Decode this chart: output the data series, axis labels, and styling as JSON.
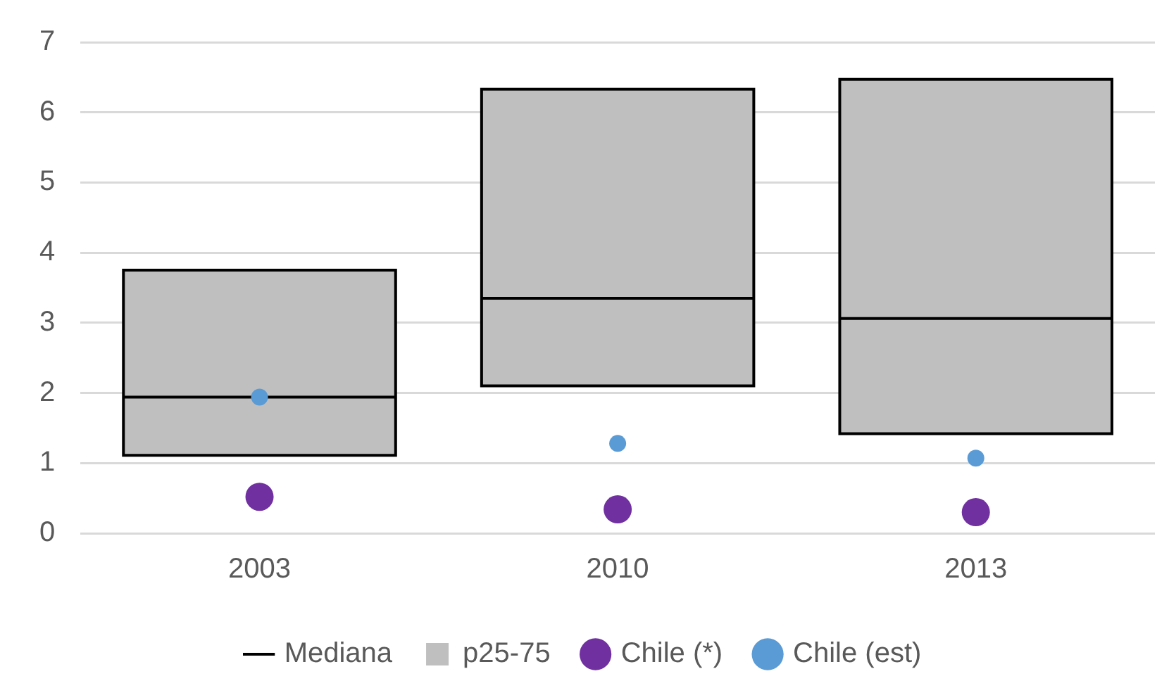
{
  "chart_data": {
    "type": "box",
    "categories": [
      "2003",
      "2010",
      "2013"
    ],
    "series": [
      {
        "name": "p25-75",
        "color": "#bfbfbf",
        "boxes": [
          {
            "low": 1.11,
            "q1": 1.11,
            "median": 1.94,
            "q3": 3.75,
            "high": 3.75
          },
          {
            "low": 2.1,
            "q1": 2.1,
            "median": 3.35,
            "q3": 6.33,
            "high": 6.33
          },
          {
            "low": 1.42,
            "q1": 1.42,
            "median": 3.06,
            "q3": 6.47,
            "high": 6.47
          }
        ]
      },
      {
        "name": "Chile (*)",
        "type": "scatter",
        "color": "#7030a0",
        "marker": "circle",
        "values": [
          0.52,
          0.34,
          0.3
        ]
      },
      {
        "name": "Chile (est)",
        "type": "scatter",
        "color": "#5b9bd5",
        "marker": "circle",
        "values": [
          1.94,
          1.28,
          1.07
        ]
      }
    ],
    "annotations": [
      "Mediana"
    ],
    "ylim": [
      0,
      7
    ],
    "yticks": [
      0,
      1,
      2,
      3,
      4,
      5,
      6,
      7
    ],
    "grid": "y",
    "legend": "bottom"
  }
}
